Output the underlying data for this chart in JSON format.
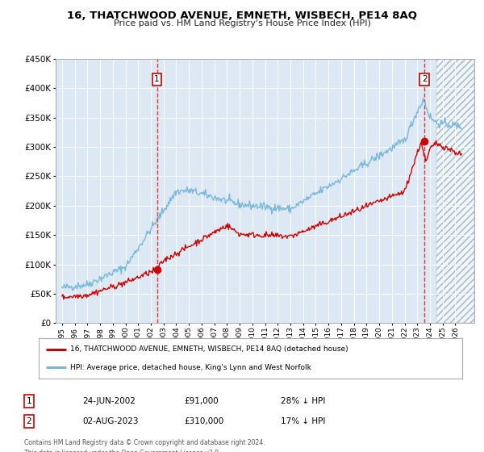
{
  "title": "16, THATCHWOOD AVENUE, EMNETH, WISBECH, PE14 8AQ",
  "subtitle": "Price paid vs. HM Land Registry's House Price Index (HPI)",
  "legend_line1": "16, THATCHWOOD AVENUE, EMNETH, WISBECH, PE14 8AQ (detached house)",
  "legend_line2": "HPI: Average price, detached house, King's Lynn and West Norfolk",
  "table_row1": [
    "1",
    "24-JUN-2002",
    "£91,000",
    "28% ↓ HPI"
  ],
  "table_row2": [
    "2",
    "02-AUG-2023",
    "£310,000",
    "17% ↓ HPI"
  ],
  "footnote": "Contains HM Land Registry data © Crown copyright and database right 2024.\nThis data is licensed under the Open Government Licence v3.0.",
  "hpi_color": "#7ab8d9",
  "price_color": "#cc0000",
  "vline_color": "#ee3333",
  "plot_bg": "#dce9f5",
  "ylim": [
    0,
    450000
  ],
  "yticks": [
    0,
    50000,
    100000,
    150000,
    200000,
    250000,
    300000,
    350000,
    400000,
    450000
  ],
  "sale1_x": 2002.48,
  "sale1_y": 91000,
  "sale2_x": 2023.58,
  "sale2_y": 310000,
  "xmin": 1995.0,
  "xmax": 2026.5,
  "hatch_start": 2024.5
}
